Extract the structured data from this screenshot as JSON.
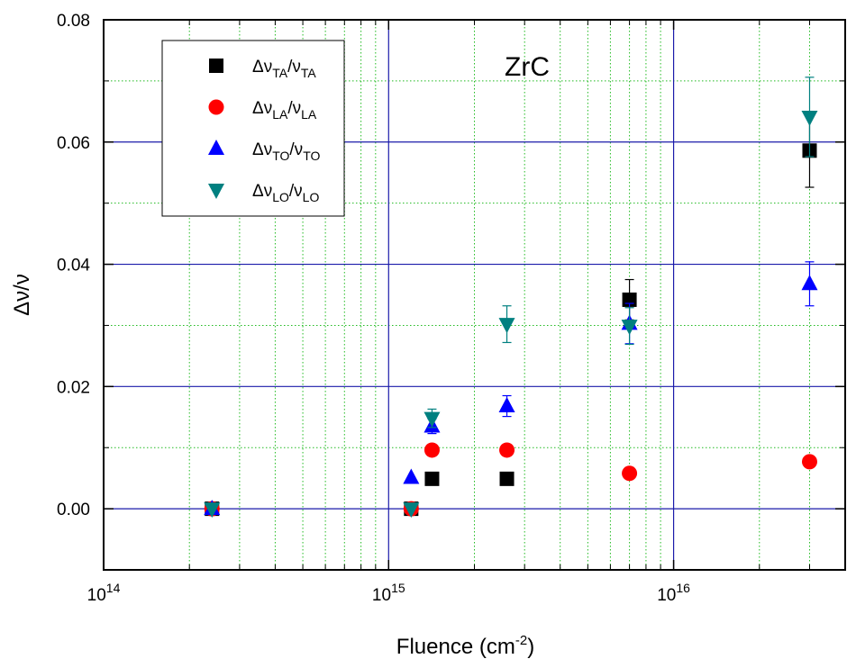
{
  "chart_data": {
    "type": "scatter",
    "xscale": "log",
    "xlim": [
      100000000000000.0,
      4e+16
    ],
    "ylim": [
      -0.01,
      0.08
    ],
    "xlabel": "Fluence (cm-2)",
    "xlabel_main": "Fluence (cm",
    "xlabel_sup": "-2",
    "xlabel_end": ")",
    "ylabel": "Δν/ν",
    "annotation": "ZrC",
    "x_ticks": [
      {
        "value": 100000000000000.0,
        "base": "10",
        "exp": "14"
      },
      {
        "value": 1000000000000000.0,
        "base": "10",
        "exp": "15"
      },
      {
        "value": 1e+16,
        "base": "10",
        "exp": "16"
      }
    ],
    "y_ticks": [
      {
        "value": 0.0,
        "label": "0.00"
      },
      {
        "value": 0.02,
        "label": "0.02"
      },
      {
        "value": 0.04,
        "label": "0.04"
      },
      {
        "value": 0.06,
        "label": "0.06"
      },
      {
        "value": 0.08,
        "label": "0.08"
      }
    ],
    "grid": true,
    "legend_position": "top-left",
    "series": [
      {
        "name": "Δν_TA/ν_TA",
        "base": "Δν",
        "sub": "TA",
        "sep": "/ν",
        "sub2": "TA",
        "marker": "square",
        "color": "#000000",
        "points": [
          {
            "x": 240000000000000.0,
            "y": 0.0
          },
          {
            "x": 1200000000000000.0,
            "y": 0.0
          },
          {
            "x": 1420000000000000.0,
            "y": 0.0049
          },
          {
            "x": 2600000000000000.0,
            "y": 0.0049
          },
          {
            "x": 7000000000000000.0,
            "y": 0.0342,
            "err": 0.0033
          },
          {
            "x": 3e+16,
            "y": 0.0586,
            "err": 0.006
          }
        ]
      },
      {
        "name": "Δν_LA/ν_LA",
        "base": "Δν",
        "sub": "LA",
        "sep": "/ν",
        "sub2": "LA",
        "marker": "circle",
        "color": "#ff0000",
        "points": [
          {
            "x": 240000000000000.0,
            "y": 0.0
          },
          {
            "x": 1200000000000000.0,
            "y": 0.0
          },
          {
            "x": 1420000000000000.0,
            "y": 0.0096
          },
          {
            "x": 2600000000000000.0,
            "y": 0.0096
          },
          {
            "x": 7000000000000000.0,
            "y": 0.0058
          },
          {
            "x": 3e+16,
            "y": 0.0077
          }
        ]
      },
      {
        "name": "Δν_TO/ν_TO",
        "base": "Δν",
        "sub": "TO",
        "sep": "/ν",
        "sub2": "TO",
        "marker": "triangle-up",
        "color": "#0000ff",
        "points": [
          {
            "x": 240000000000000.0,
            "y": 0.0
          },
          {
            "x": 1200000000000000.0,
            "y": 0.0051
          },
          {
            "x": 1420000000000000.0,
            "y": 0.0135,
            "err": 0.0012
          },
          {
            "x": 2600000000000000.0,
            "y": 0.0168,
            "err": 0.0017
          },
          {
            "x": 7000000000000000.0,
            "y": 0.0303,
            "err": 0.0033
          },
          {
            "x": 3e+16,
            "y": 0.0368,
            "err": 0.0036
          }
        ]
      },
      {
        "name": "Δν_LO/ν_LO",
        "base": "Δν",
        "sub": "LO",
        "sep": "/ν",
        "sub2": "LO",
        "marker": "triangle-down",
        "color": "#008080",
        "points": [
          {
            "x": 240000000000000.0,
            "y": 0.0
          },
          {
            "x": 1200000000000000.0,
            "y": 0.0
          },
          {
            "x": 1420000000000000.0,
            "y": 0.0148,
            "err": 0.0015
          },
          {
            "x": 2600000000000000.0,
            "y": 0.0302,
            "err": 0.003
          },
          {
            "x": 7000000000000000.0,
            "y": 0.0299,
            "err": 0.003
          },
          {
            "x": 3e+16,
            "y": 0.0641,
            "err": 0.0065
          }
        ]
      }
    ]
  }
}
